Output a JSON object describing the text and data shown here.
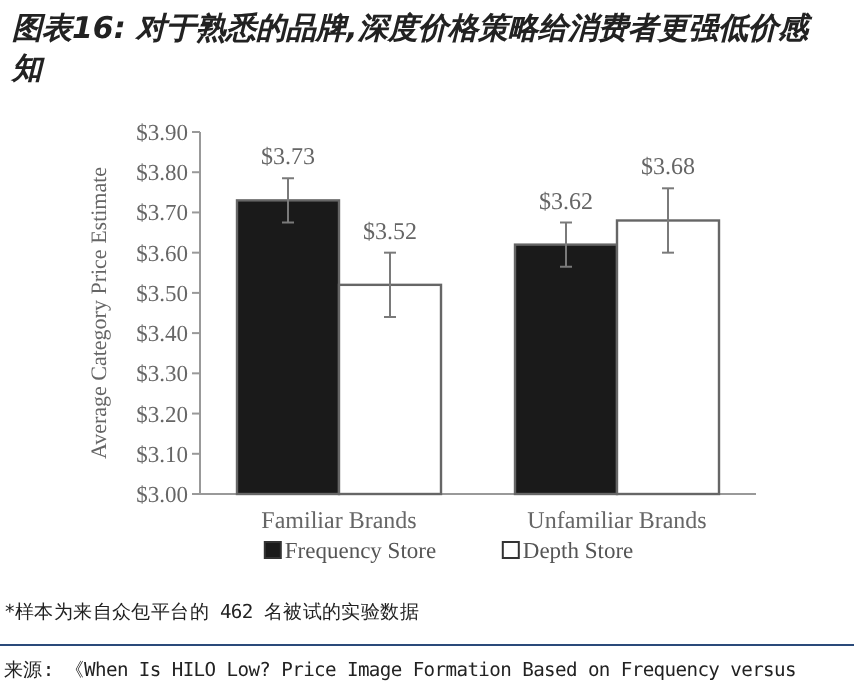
{
  "chart_data": {
    "type": "bar",
    "title": "图表16: 对于熟悉的品牌,深度价格策略给消费者更强低价感知",
    "ylabel": "Average Category Price Estimate",
    "categories": [
      "Familiar Brands",
      "Unfamiliar Brands"
    ],
    "series": [
      {
        "name": "Frequency Store",
        "color": "#1a1a1a",
        "values": [
          3.73,
          3.62
        ],
        "errors": [
          0.055,
          0.055
        ],
        "value_labels": [
          "$3.73",
          "$3.62"
        ]
      },
      {
        "name": "Depth Store",
        "color": "#ffffff",
        "values": [
          3.52,
          3.68
        ],
        "errors": [
          0.08,
          0.08
        ],
        "value_labels": [
          "$3.52",
          "$3.68"
        ]
      }
    ],
    "ylim": [
      3.0,
      3.9
    ],
    "yticks": [
      {
        "value": 3.0,
        "label": "$3.00"
      },
      {
        "value": 3.1,
        "label": "$3.10"
      },
      {
        "value": 3.2,
        "label": "$3.20"
      },
      {
        "value": 3.3,
        "label": "$3.30"
      },
      {
        "value": 3.4,
        "label": "$3.40"
      },
      {
        "value": 3.5,
        "label": "$3.50"
      },
      {
        "value": 3.6,
        "label": "$3.60"
      },
      {
        "value": 3.7,
        "label": "$3.70"
      },
      {
        "value": 3.8,
        "label": "$3.80"
      },
      {
        "value": 3.9,
        "label": "$3.90"
      }
    ],
    "grid": false,
    "legend": "bottom",
    "annotations": [
      "*样本为来自众包平台的 462 名被试的实验数据",
      "来源: 《When Is HILO Low? Price Image Formation Based on Frequency versus"
    ]
  }
}
